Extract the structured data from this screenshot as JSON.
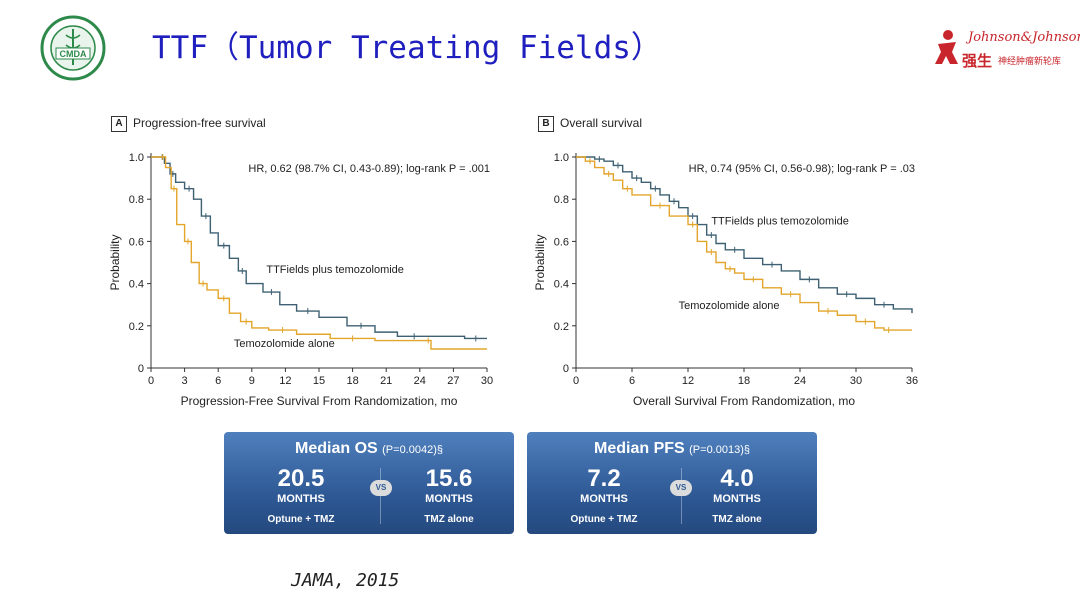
{
  "slide": {
    "title": "TTF（Tumor Treating Fields）",
    "citation": "JAMA, 2015",
    "logo_left": {
      "text": "CMDA",
      "icon": "caduceus-seal-icon"
    },
    "logo_right": {
      "brand": "Johnson&Johnson",
      "cn_main": "强生",
      "cn_sub": "神经肿瘤新轮库",
      "icon": "jj-red-figure-icon"
    }
  },
  "colors": {
    "ttf": "#3e6072",
    "tmz": "#e3a52b",
    "title": "#1f1fbf",
    "box": "#2f5a96"
  },
  "chart_data": [
    {
      "type": "line",
      "panel": "A",
      "title": "Progression-free survival",
      "xlabel": "Progression-Free Survival From Randomization, mo",
      "ylabel": "Probability",
      "xlim": [
        0,
        30
      ],
      "ylim": [
        0,
        1.0
      ],
      "xticks": [
        0,
        3,
        6,
        9,
        12,
        15,
        18,
        21,
        24,
        27,
        30
      ],
      "yticks": [
        0,
        0.2,
        0.4,
        0.6,
        0.8,
        1.0
      ],
      "annotation": "HR, 0.62 (98.7% CI, 0.43-0.89); log-rank P = .001",
      "series": [
        {
          "name": "TTFields plus temozolomide",
          "color": "#3e6072",
          "label_at": [
            10.3,
            0.45
          ],
          "x": [
            0,
            0.8,
            1.2,
            1.7,
            2.2,
            3,
            3.8,
            4.5,
            5.3,
            6,
            7,
            7.8,
            8.5,
            10,
            11.5,
            13,
            15,
            17.5,
            20,
            22,
            25,
            28,
            30
          ],
          "y": [
            1.0,
            1.0,
            0.97,
            0.92,
            0.88,
            0.85,
            0.8,
            0.72,
            0.64,
            0.58,
            0.52,
            0.46,
            0.4,
            0.36,
            0.3,
            0.27,
            0.24,
            0.2,
            0.17,
            0.15,
            0.15,
            0.14,
            0.14
          ]
        },
        {
          "name": "Temozolomide alone",
          "color": "#e3a52b",
          "label_at": [
            7.4,
            0.1
          ],
          "x": [
            0,
            0.8,
            1.3,
            1.8,
            2.3,
            3,
            3.6,
            4.3,
            5,
            6,
            7,
            8,
            9,
            10.5,
            13,
            16,
            20,
            24.5,
            25,
            30
          ],
          "y": [
            1.0,
            1.0,
            0.95,
            0.85,
            0.68,
            0.6,
            0.5,
            0.4,
            0.37,
            0.33,
            0.26,
            0.22,
            0.19,
            0.18,
            0.16,
            0.14,
            0.13,
            0.13,
            0.09,
            0.09
          ]
        }
      ]
    },
    {
      "type": "line",
      "panel": "B",
      "title": "Overall survival",
      "xlabel": "Overall Survival From Randomization, mo",
      "ylabel": "Probability",
      "xlim": [
        0,
        36
      ],
      "ylim": [
        0,
        1.0
      ],
      "xticks": [
        0,
        6,
        12,
        18,
        24,
        30,
        36
      ],
      "yticks": [
        0,
        0.2,
        0.4,
        0.6,
        0.8,
        1.0
      ],
      "annotation": "HR, 0.74 (95% CI, 0.56-0.98); log-rank P = .03",
      "series": [
        {
          "name": "TTFields plus temozolomide",
          "color": "#3e6072",
          "label_at": [
            14.5,
            0.68
          ],
          "x": [
            0,
            2,
            3,
            4,
            5,
            6,
            7,
            8,
            9,
            10,
            11,
            12,
            13,
            14,
            15,
            16,
            18,
            20,
            22,
            24,
            26,
            28,
            30,
            32,
            34,
            36
          ],
          "y": [
            1.0,
            0.99,
            0.98,
            0.96,
            0.93,
            0.9,
            0.88,
            0.85,
            0.82,
            0.79,
            0.76,
            0.72,
            0.68,
            0.63,
            0.59,
            0.56,
            0.52,
            0.49,
            0.46,
            0.42,
            0.38,
            0.35,
            0.33,
            0.3,
            0.28,
            0.26
          ]
        },
        {
          "name": "Temozolomide alone",
          "color": "#e3a52b",
          "label_at": [
            11,
            0.28
          ],
          "x": [
            0,
            1,
            2,
            3,
            4,
            5,
            6,
            8,
            10,
            12,
            13,
            14,
            15,
            16,
            17,
            18,
            20,
            22,
            24,
            26,
            28,
            30,
            32,
            33,
            34,
            36
          ],
          "y": [
            1.0,
            0.98,
            0.95,
            0.92,
            0.89,
            0.85,
            0.82,
            0.77,
            0.72,
            0.68,
            0.6,
            0.55,
            0.5,
            0.47,
            0.45,
            0.42,
            0.38,
            0.35,
            0.31,
            0.27,
            0.25,
            0.22,
            0.19,
            0.18,
            0.18,
            0.18
          ]
        }
      ]
    }
  ],
  "summary_boxes": [
    {
      "header": "Median OS",
      "p": "(P=0.0042)§",
      "left_value": "20.5",
      "left_unit": "MONTHS",
      "left_arm": "Optune + TMZ",
      "vs": "VS",
      "right_value": "15.6",
      "right_unit": "MONTHS",
      "right_arm": "TMZ alone"
    },
    {
      "header": "Median PFS",
      "p": "(P=0.0013)§",
      "left_value": "7.2",
      "left_unit": "MONTHS",
      "left_arm": "Optune + TMZ",
      "vs": "VS",
      "right_value": "4.0",
      "right_unit": "MONTHS",
      "right_arm": "TMZ alone"
    }
  ]
}
